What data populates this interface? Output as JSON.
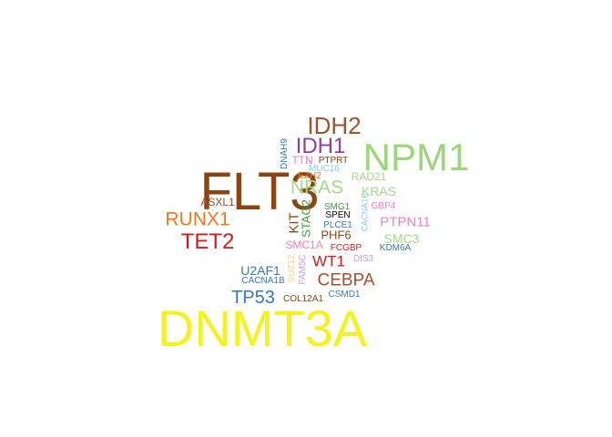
{
  "words": [
    {
      "text": "DNMT3A",
      "color": "#f5f31f",
      "size_rank": 1
    },
    {
      "text": "FLT3",
      "color": "#8b4513",
      "size_rank": 2,
      "vertical": true
    },
    {
      "text": "NPM1",
      "color": "#9ad877",
      "size_rank": 3
    },
    {
      "text": "IDH2",
      "color": "#a0522d",
      "size_rank": 4
    },
    {
      "text": "IDH1",
      "color": "#8e3ea6",
      "size_rank": 5
    },
    {
      "text": "TET2",
      "color": "#d7191c",
      "size_rank": 6
    },
    {
      "text": "RUNX1",
      "color": "#f07820",
      "size_rank": 7
    },
    {
      "text": "NRAS",
      "color": "#a6d98a",
      "size_rank": 8
    },
    {
      "text": "TP53",
      "color": "#3a78b8",
      "size_rank": 9
    },
    {
      "text": "CEBPA",
      "color": "#a0522d",
      "size_rank": 10
    },
    {
      "text": "WT1",
      "color": "#d7191c",
      "size_rank": 11
    },
    {
      "text": "KRAS",
      "color": "#a6d98a",
      "size_rank": 12
    },
    {
      "text": "PTPN11",
      "color": "#f07fbf",
      "size_rank": 13
    },
    {
      "text": "SMC3",
      "color": "#a6d98a",
      "size_rank": 14
    },
    {
      "text": "U2AF1",
      "color": "#3a78b8",
      "size_rank": 15
    },
    {
      "text": "SMC1A",
      "color": "#f07fbf",
      "size_rank": 16
    },
    {
      "text": "PHF6",
      "color": "#8b4513",
      "size_rank": 17
    },
    {
      "text": "KIT",
      "color": "#8b4513",
      "size_rank": 18,
      "vertical": true
    },
    {
      "text": "STAG2",
      "color": "#3aa03a",
      "size_rank": 19,
      "vertical": true
    },
    {
      "text": "TTN",
      "color": "#f07fbf",
      "size_rank": 20
    },
    {
      "text": "ASXL1",
      "color": "#a0522d",
      "size_rank": 21
    },
    {
      "text": "RAD21",
      "color": "#a6d98a",
      "size_rank": 22
    },
    {
      "text": "DNAH9",
      "color": "#3a78b8",
      "size_rank": 23,
      "vertical": true
    },
    {
      "text": "PTPRT",
      "color": "#8b4513",
      "size_rank": 24
    },
    {
      "text": "MUC16",
      "color": "#8ec8e8",
      "size_rank": 25
    },
    {
      "text": "EZH2",
      "color": "#f07820",
      "size_rank": 26
    },
    {
      "text": "SMG1",
      "color": "#3aa03a",
      "size_rank": 27
    },
    {
      "text": "SPEN",
      "color": "#000000",
      "size_rank": 28
    },
    {
      "text": "PLCE1",
      "color": "#3a78b8",
      "size_rank": 29
    },
    {
      "text": "CACNA1E",
      "color": "#8ec8e8",
      "size_rank": 30,
      "vertical": true
    },
    {
      "text": "GBP4",
      "color": "#f07fbf",
      "size_rank": 31
    },
    {
      "text": "FCGBP",
      "color": "#d7191c",
      "size_rank": 32
    },
    {
      "text": "KDM6A",
      "color": "#3a78b8",
      "size_rank": 33
    },
    {
      "text": "DIS3",
      "color": "#c8a0d8",
      "size_rank": 34
    },
    {
      "text": "SUZ12",
      "color": "#f5d090",
      "size_rank": 35,
      "vertical": true
    },
    {
      "text": "FAM5C",
      "color": "#c8a0d8",
      "size_rank": 36,
      "vertical": true
    },
    {
      "text": "CACNA1B",
      "color": "#3a78b8",
      "size_rank": 37
    },
    {
      "text": "CSMD1",
      "color": "#3a78b8",
      "size_rank": 38
    },
    {
      "text": "COL12A1",
      "color": "#8b4513",
      "size_rank": 39
    }
  ]
}
